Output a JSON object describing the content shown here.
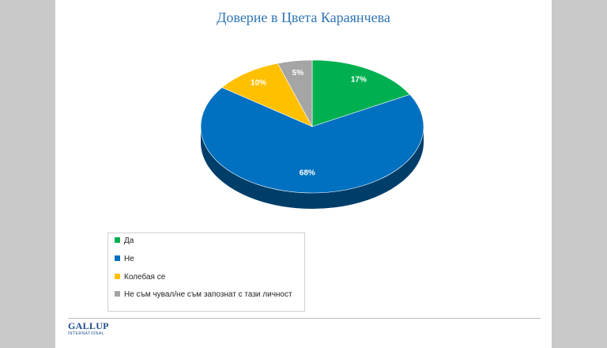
{
  "chart_data": {
    "type": "pie",
    "title": "Доверие в Цвета Караянчева",
    "slices": [
      {
        "label": "Да",
        "value": 17,
        "display": "17%",
        "color": "#00b050"
      },
      {
        "label": "Не",
        "value": 68,
        "display": "68%",
        "color": "#0070c0"
      },
      {
        "label": "Колебая се",
        "value": 10,
        "display": "10%",
        "color": "#ffc000"
      },
      {
        "label": "Не съм чувал/не съм запознат с тази личност",
        "value": 5,
        "display": "5%",
        "color": "#a5a5a5"
      }
    ],
    "legend_position": "bottom-left"
  },
  "footer": {
    "logo_main": "GALLUP",
    "logo_sub": "INTERNATIONAL"
  }
}
